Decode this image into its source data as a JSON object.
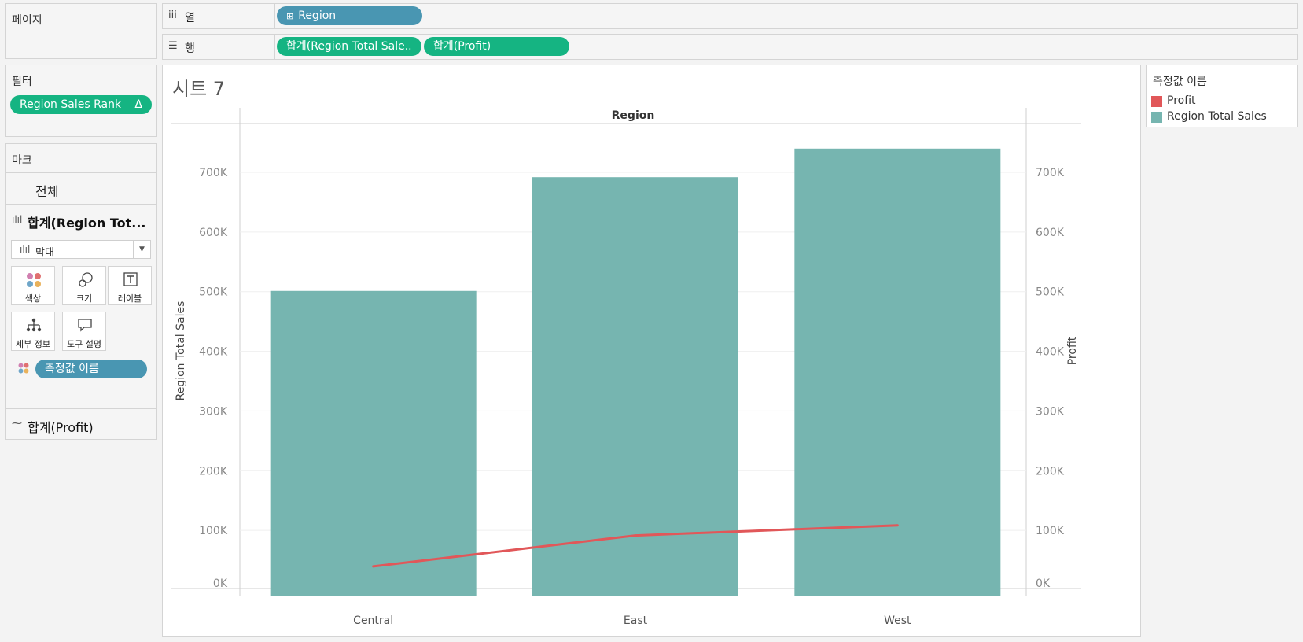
{
  "pages": {
    "title": "페이지"
  },
  "filters": {
    "title": "필터",
    "pill": "Region Sales Rank",
    "pill_icon": "Δ"
  },
  "marks": {
    "title": "마크",
    "all_label": "전체",
    "sales_card_label": "합계(Region Tot...",
    "mark_type": "막대",
    "buttons": {
      "color": "색상",
      "size": "크기",
      "label": "레이블",
      "detail": "세부 정보",
      "tooltip": "도구 설명"
    },
    "measure_pill": "측정값 이름",
    "profit_card_label": "합계(Profit)"
  },
  "shelves": {
    "columns": {
      "label": "열",
      "pill": "Region"
    },
    "rows": {
      "label": "행",
      "pills": [
        "합계(Region Total Sale..",
        "합계(Profit)"
      ]
    }
  },
  "sheet": {
    "title": "시트 7"
  },
  "legend": {
    "title": "측정값 이름",
    "items": [
      {
        "label": "Profit",
        "color": "#e15759"
      },
      {
        "label": "Region Total Sales",
        "color": "#76b5b0"
      }
    ]
  },
  "colors": {
    "bar": "#76b5b0",
    "line": "#e15759",
    "pill_blue": "#4996b2",
    "pill_green": "#15b482"
  },
  "chart_data": {
    "type": "bar",
    "header": "Region",
    "categories": [
      "Central",
      "East",
      "West"
    ],
    "series": [
      {
        "name": "Region Total Sales",
        "type": "bar",
        "axis": "left",
        "values": [
          501240,
          691828,
          739814
        ]
      },
      {
        "name": "Profit",
        "type": "line",
        "axis": "right",
        "values": [
          39706,
          91523,
          108418
        ]
      }
    ],
    "ylabel": "Region Total Sales",
    "y2label": "Profit",
    "ylim": [
      0,
      800000
    ],
    "yticks": [
      0,
      100000,
      200000,
      300000,
      400000,
      500000,
      600000,
      700000
    ],
    "ytick_labels": [
      "0K",
      "100K",
      "200K",
      "300K",
      "400K",
      "500K",
      "600K",
      "700K"
    ],
    "grid": true
  }
}
